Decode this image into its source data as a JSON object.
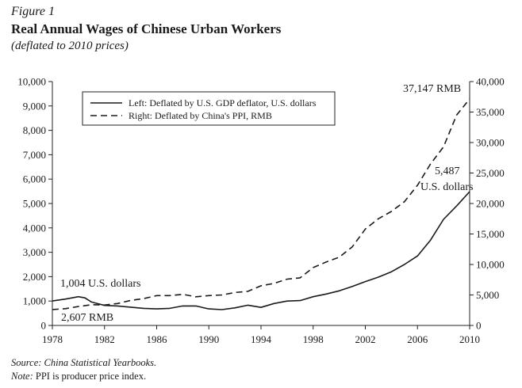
{
  "figure": {
    "label": "Figure 1",
    "title": "Real Annual Wages of Chinese Urban Workers",
    "subtitle": "(deflated to 2010 prices)"
  },
  "footer": {
    "source_label": "Source:",
    "source_text": "China Statistical Yearbooks.",
    "note_label": "Note:",
    "note_text": "PPI is producer price index."
  },
  "chart_data": {
    "type": "line",
    "x_ticks": [
      1978,
      1982,
      1986,
      1990,
      1994,
      1998,
      2002,
      2006,
      2010
    ],
    "xlim": [
      1978,
      2010
    ],
    "y_left": {
      "lim": [
        0,
        10000
      ],
      "ticks": [
        "0",
        "1,000",
        "2,000",
        "3,000",
        "4,000",
        "5,000",
        "6,000",
        "7,000",
        "8,000",
        "9,000",
        "10,000"
      ]
    },
    "y_right": {
      "lim": [
        0,
        40000
      ],
      "ticks": [
        "0",
        "5,000",
        "10,000",
        "15,000",
        "20,000",
        "25,000",
        "30,000",
        "35,000",
        "40,000"
      ]
    },
    "legend": {
      "placement": "top-left",
      "entries": [
        {
          "label": "Left: Deflated by U.S. GDP deflator, U.S. dollars",
          "style": "solid"
        },
        {
          "label": "Right: Deflated by China's PPI, RMB",
          "style": "dashed"
        }
      ]
    },
    "annotations": {
      "left_start": "1,004 U.S. dollars",
      "right_start": "2,607 RMB",
      "right_end": "37,147 RMB",
      "left_end_value": "5,487",
      "left_end_unit": "U.S. dollars"
    },
    "series": [
      {
        "axis": "left",
        "style": "solid",
        "x": [
          1978,
          1979,
          1980,
          1980.5,
          1981,
          1982,
          1983,
          1984,
          1985,
          1986,
          1987,
          1988,
          1989,
          1990,
          1991,
          1992,
          1993,
          1994,
          1995,
          1996,
          1997,
          1998,
          1999,
          2000,
          2001,
          2002,
          2003,
          2004,
          2005,
          2006,
          2007,
          2008,
          2009,
          2010
        ],
        "y": [
          1004,
          1080,
          1180,
          1130,
          960,
          820,
          800,
          750,
          700,
          680,
          700,
          800,
          800,
          680,
          650,
          720,
          830,
          740,
          900,
          1000,
          1020,
          1180,
          1290,
          1420,
          1600,
          1800,
          1980,
          2200,
          2500,
          2850,
          3500,
          4350,
          4900,
          5487
        ]
      },
      {
        "axis": "right",
        "style": "dashed",
        "x": [
          1978,
          1979,
          1980,
          1981,
          1982,
          1983,
          1984,
          1985,
          1986,
          1987,
          1988,
          1989,
          1990,
          1991,
          1992,
          1993,
          1994,
          1995,
          1996,
          1997,
          1998,
          1999,
          2000,
          2001,
          2002,
          2003,
          2004,
          2005,
          2006,
          2007,
          2008,
          2009,
          2010
        ],
        "y": [
          2607,
          2750,
          3100,
          3400,
          3350,
          3600,
          4100,
          4400,
          4900,
          4900,
          5100,
          4700,
          4900,
          5000,
          5400,
          5600,
          6500,
          6900,
          7600,
          7800,
          9500,
          10400,
          11200,
          12900,
          15800,
          17500,
          18700,
          20300,
          23000,
          26500,
          29300,
          34500,
          37147
        ]
      }
    ]
  }
}
